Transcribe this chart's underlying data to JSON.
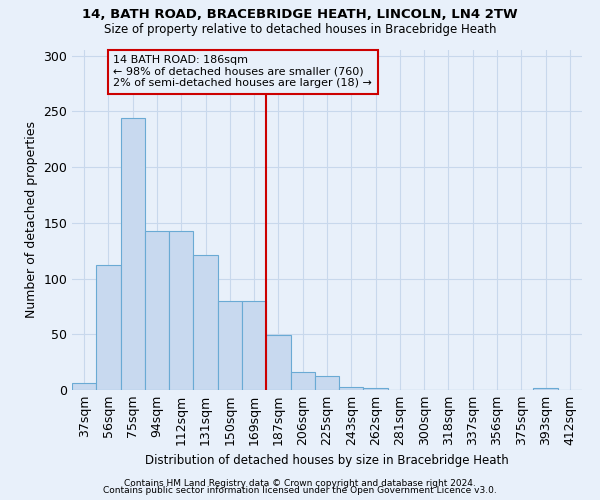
{
  "title1": "14, BATH ROAD, BRACEBRIDGE HEATH, LINCOLN, LN4 2TW",
  "title2": "Size of property relative to detached houses in Bracebridge Heath",
  "xlabel": "Distribution of detached houses by size in Bracebridge Heath",
  "ylabel": "Number of detached properties",
  "categories": [
    "37sqm",
    "56sqm",
    "75sqm",
    "94sqm",
    "112sqm",
    "131sqm",
    "150sqm",
    "169sqm",
    "187sqm",
    "206sqm",
    "225sqm",
    "243sqm",
    "262sqm",
    "281sqm",
    "300sqm",
    "318sqm",
    "337sqm",
    "356sqm",
    "375sqm",
    "393sqm",
    "412sqm"
  ],
  "values": [
    6,
    112,
    244,
    143,
    143,
    121,
    80,
    80,
    49,
    16,
    13,
    3,
    2,
    0,
    0,
    0,
    0,
    0,
    0,
    2,
    0
  ],
  "bar_color": "#c8d9ef",
  "bar_edgecolor": "#6aaad4",
  "vline_x_idx": 8,
  "vline_color": "#cc0000",
  "annotation_text": "14 BATH ROAD: 186sqm\n← 98% of detached houses are smaller (760)\n2% of semi-detached houses are larger (18) →",
  "annotation_box_edgecolor": "#cc0000",
  "ylim_max": 305,
  "yticks": [
    0,
    50,
    100,
    150,
    200,
    250,
    300
  ],
  "footnote1": "Contains HM Land Registry data © Crown copyright and database right 2024.",
  "footnote2": "Contains public sector information licensed under the Open Government Licence v3.0.",
  "grid_color": "#c8d8ec",
  "background_color": "#e8f0fa"
}
